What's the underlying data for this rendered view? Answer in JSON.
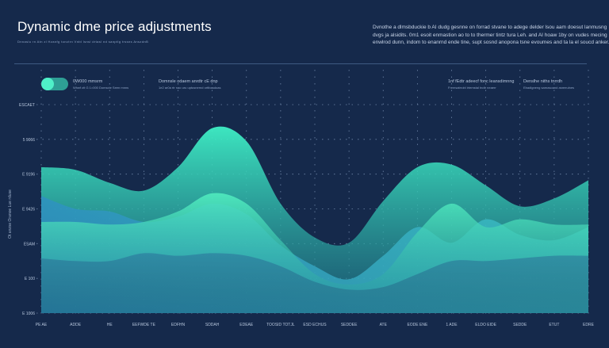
{
  "header": {
    "title": "Dynamic dme price adjustments",
    "subtitle": "Dnnaslu rn  Atn zl Hzanfg tonctrn  Vnbl lsnsl drtasl  nd  sanptlg trssns  AnszdnB",
    "description": [
      "Dvnothe a dlmsbduckie b AI dudg gesnne on forrad stvane to adege delder lsou aam doesut lanmusng",
      "dvgs ja alsidits. 0m1 esoit enmastion ao to to thermer tintz tura Leh. and AI hoaw 1by on vudes mecing",
      "enwlrod dunn, indom to enanrnd ende tine, supt sosnd anopona tsne evoumes and ta la el soucd anker."
    ]
  },
  "legend": {
    "toggle_label": "0W000 mmsrm",
    "toggle_sub": "Whwf ctt G 1=000 Domscte Seen mnns",
    "item2_label": "Domnsle odaem anrdtr cE dnp",
    "item2_sub": "1e2 ar0a rtr nao uru  uptusnernd orttbasdoas",
    "item3_label": "1nf fEdtr adeecf fonc leansdimnng",
    "item3_sub": "Fremsatrrobl irtemstal tndtr neaerr",
    "item4_label": "Denslhe niths tnrrdh",
    "item4_sub": "Ebadlgneng sarnasoand asreeulnes"
  },
  "colors": {
    "background": "#15294b",
    "grid": "#6f86a8",
    "accent": "#4ff0c8",
    "teal": "#2fd3b3",
    "blue": "#3d8fd6"
  },
  "chart_data": {
    "type": "area",
    "ylabel": "Ot anzse  Oranoe  Lue rduse",
    "y_ticks": [
      "ESCAET",
      "5 9066",
      "E 9196",
      "E 9426",
      "ESAM",
      "E 100",
      "E 1006"
    ],
    "x": [
      "PE  AE",
      "ADDE",
      "HE",
      "EEFWDE  TE",
      "EDFHN",
      "SDDAH",
      "EDEAE",
      "TOOSID  TOTJL",
      "ESD  ECHUS",
      "SEDDEE",
      "ATE",
      "EODE  ENE",
      "1 ADE",
      "ELDO  EIDE",
      "SEDDE",
      "ETUT",
      "EDRE"
    ],
    "series": [
      {
        "values": [
          5.6,
          5.5,
          5.0,
          4.7,
          5.6,
          7.1,
          6.6,
          4.2,
          2.9,
          2.7,
          4.3,
          5.6,
          5.7,
          4.9,
          4.1,
          4.4,
          5.1
        ]
      },
      {
        "values": [
          4.5,
          4.0,
          3.9,
          3.5,
          3.7,
          4.2,
          3.8,
          2.6,
          1.8,
          1.3,
          2.2,
          3.3,
          2.7,
          3.6,
          3.0,
          2.8,
          3.3
        ]
      },
      {
        "values": [
          3.5,
          3.5,
          3.4,
          3.5,
          3.9,
          4.6,
          4.2,
          2.8,
          1.5,
          1.1,
          1.5,
          3.1,
          4.2,
          3.3,
          3.6,
          3.4,
          3.4
        ]
      },
      {
        "values": [
          2.1,
          2.0,
          2.0,
          2.3,
          2.2,
          2.3,
          2.2,
          1.8,
          1.2,
          0.9,
          1.0,
          1.5,
          2.0,
          2.0,
          2.1,
          2.2,
          2.2
        ]
      }
    ],
    "ylim": [
      0,
      8
    ],
    "grid": true
  }
}
